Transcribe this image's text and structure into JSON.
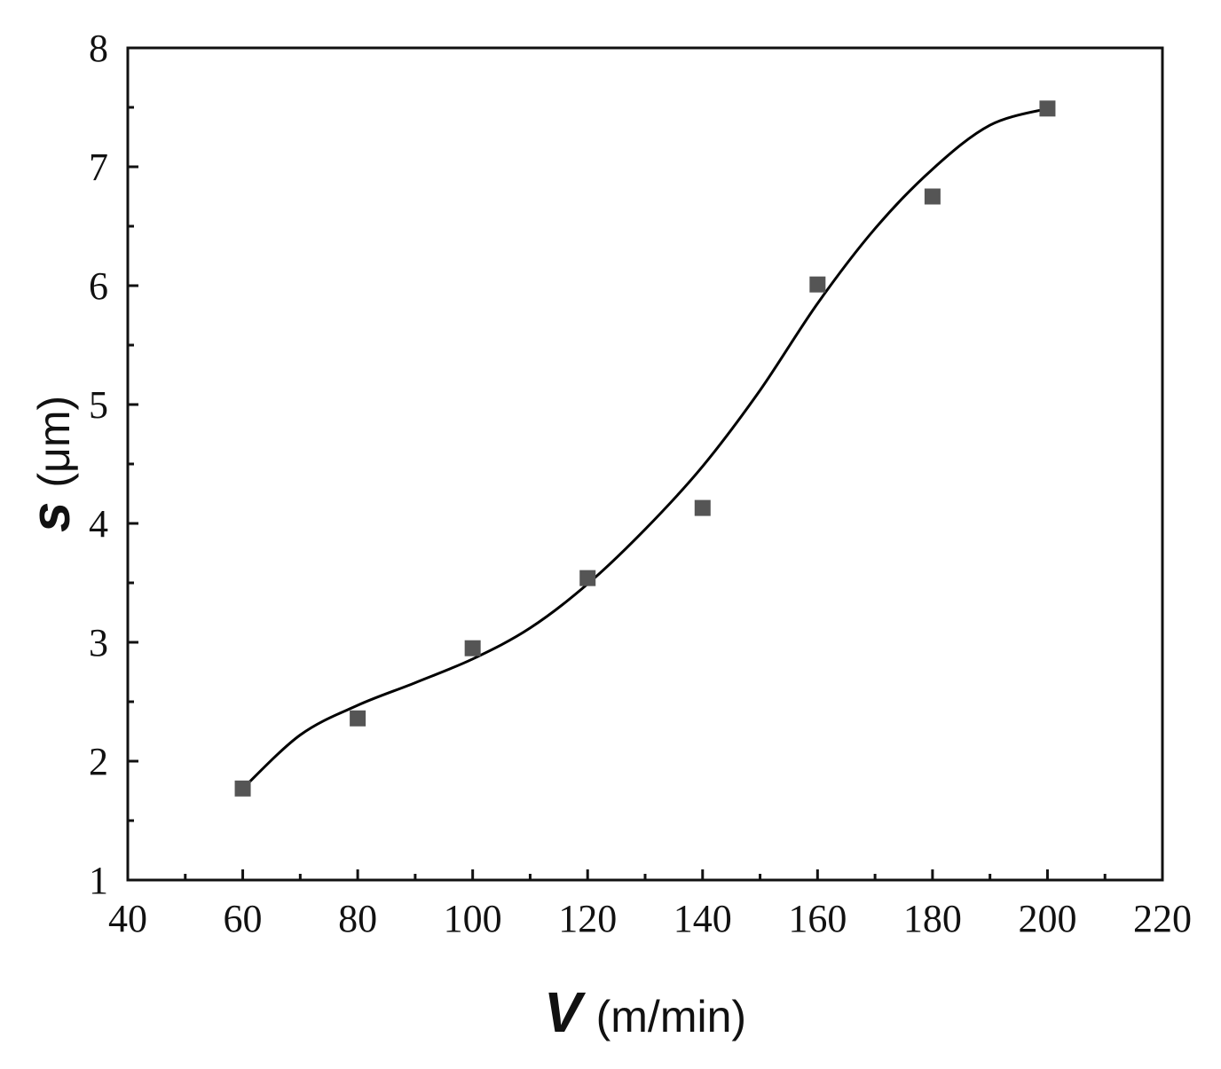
{
  "chart_data": {
    "type": "scatter",
    "title": "",
    "xlabel": {
      "symbol": "V",
      "unit": "(m/min)"
    },
    "ylabel": {
      "symbol": "s",
      "unit": "(μm)"
    },
    "xlim": [
      40,
      220
    ],
    "ylim": [
      1,
      8
    ],
    "x_ticks": [
      "40",
      "60",
      "80",
      "100",
      "120",
      "140",
      "160",
      "180",
      "200",
      "220"
    ],
    "y_ticks": [
      "1",
      "2",
      "3",
      "4",
      "5",
      "6",
      "7",
      "8"
    ],
    "grid": false,
    "legend": "none",
    "series": [
      {
        "x": [
          60,
          80,
          100,
          120,
          140,
          160,
          180,
          200
        ],
        "y": [
          1.77,
          2.36,
          2.95,
          3.54,
          4.13,
          6.01,
          6.75,
          7.49
        ],
        "marker": "square",
        "color": "#555555"
      }
    ],
    "fit_curve": {
      "color": "#000000",
      "x": [
        60,
        70,
        80,
        90,
        100,
        110,
        120,
        130,
        140,
        150,
        160,
        170,
        180,
        190,
        200
      ],
      "y": [
        1.77,
        2.22,
        2.47,
        2.66,
        2.86,
        3.12,
        3.49,
        3.95,
        4.48,
        5.12,
        5.85,
        6.48,
        6.98,
        7.35,
        7.49
      ]
    }
  }
}
